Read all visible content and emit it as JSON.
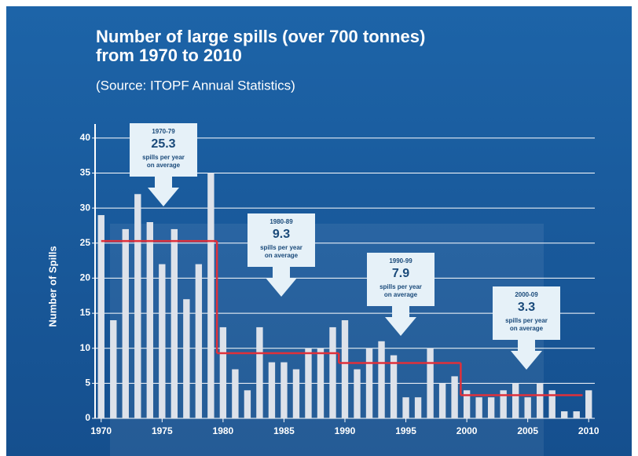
{
  "chart_data": {
    "type": "bar",
    "title": [
      "Number of large spills (over 700 tonnes)",
      "from 1970 to 2010"
    ],
    "subtitle": "(Source: ITOPF Annual Statistics)",
    "y_label": "Number of Spills",
    "x": [
      1970,
      1971,
      1972,
      1973,
      1974,
      1975,
      1976,
      1977,
      1978,
      1979,
      1980,
      1981,
      1982,
      1983,
      1984,
      1985,
      1986,
      1987,
      1988,
      1989,
      1990,
      1991,
      1992,
      1993,
      1994,
      1995,
      1996,
      1997,
      1998,
      1999,
      2000,
      2001,
      2002,
      2003,
      2004,
      2005,
      2006,
      2007,
      2008,
      2009,
      2010
    ],
    "values": [
      29,
      14,
      27,
      32,
      28,
      22,
      27,
      17,
      22,
      35,
      13,
      7,
      4,
      13,
      8,
      8,
      7,
      10,
      10,
      13,
      14,
      7,
      10,
      11,
      9,
      3,
      3,
      10,
      5,
      6,
      4,
      3,
      3,
      4,
      5,
      3,
      5,
      4,
      1,
      1,
      4
    ],
    "color": "#dde2ea",
    "average_color": "#e0303a",
    "xlim": [
      1969.5,
      2010.5
    ],
    "xticks": [
      1970,
      1975,
      1980,
      1985,
      1990,
      1995,
      2000,
      2005,
      2010
    ],
    "ylim": [
      0,
      42
    ],
    "yticks": [
      0,
      5,
      10,
      15,
      20,
      25,
      30,
      35,
      40
    ],
    "grid": true,
    "annotations": [
      {
        "period": "1970-79",
        "value": 25.3,
        "text": [
          "spills per year",
          "on average"
        ]
      },
      {
        "period": "1980-89",
        "value": 9.3,
        "text": [
          "spills per year",
          "on average"
        ]
      },
      {
        "period": "1990-99",
        "value": 7.9,
        "text": [
          "spills per year",
          "on average"
        ]
      },
      {
        "period": "2000-09",
        "value": 3.3,
        "text": [
          "spills per year",
          "on average"
        ]
      }
    ]
  }
}
